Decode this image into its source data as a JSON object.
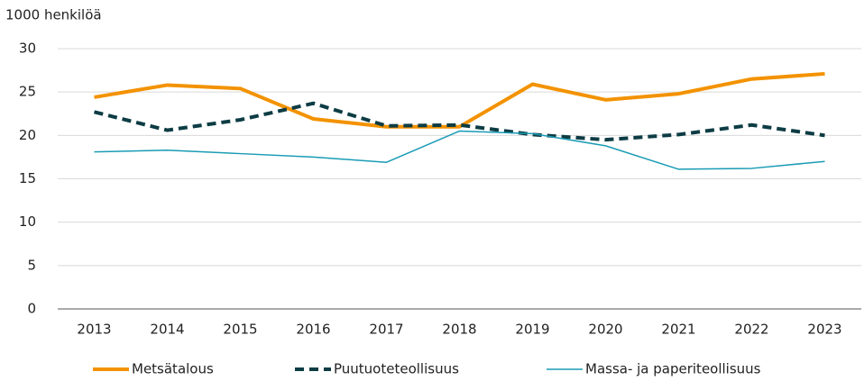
{
  "chart_data": {
    "type": "line",
    "y_axis_label": "1000 henkilöä",
    "categories": [
      "2013",
      "2014",
      "2015",
      "2016",
      "2017",
      "2018",
      "2019",
      "2020",
      "2021",
      "2022",
      "2023"
    ],
    "series": [
      {
        "name": "Metsätalous",
        "color": "#f39200",
        "style": "solid",
        "width": 4,
        "values": [
          24.4,
          25.8,
          25.4,
          21.9,
          21.0,
          21.0,
          25.9,
          24.1,
          24.8,
          26.5,
          27.1
        ]
      },
      {
        "name": "Puutuoteteollisuus",
        "color": "#0d3c44",
        "style": "dashed",
        "width": 4,
        "values": [
          22.7,
          20.6,
          21.8,
          23.7,
          21.1,
          21.2,
          20.1,
          19.5,
          20.1,
          21.2,
          20.0
        ]
      },
      {
        "name": "Massa- ja paperiteollisuus",
        "color": "#1a9bb5",
        "style": "solid",
        "width": 1.5,
        "values": [
          18.1,
          18.3,
          17.9,
          17.5,
          16.9,
          20.5,
          20.2,
          18.8,
          16.1,
          16.2,
          17.0
        ]
      }
    ],
    "ylim": [
      0,
      30
    ],
    "yticks": [
      0,
      5,
      10,
      15,
      20,
      25,
      30
    ],
    "grid": true,
    "legend": "bottom"
  }
}
